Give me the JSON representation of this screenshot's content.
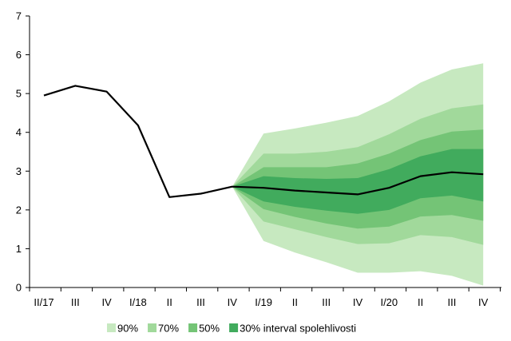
{
  "chart_data": {
    "type": "fan",
    "title": "",
    "xlabel": "",
    "ylabel": "",
    "ylim": [
      0,
      7
    ],
    "y_ticks": [
      0,
      1,
      2,
      3,
      4,
      5,
      6,
      7
    ],
    "grid": false,
    "categories": [
      "II/17",
      "III",
      "IV",
      "I/18",
      "II",
      "III",
      "IV",
      "I/19",
      "II",
      "III",
      "IV",
      "I/20",
      "II",
      "III",
      "IV"
    ],
    "central_line": [
      4.95,
      5.2,
      5.05,
      4.18,
      2.33,
      2.42,
      2.6,
      2.57,
      2.5,
      2.45,
      2.4,
      2.57,
      2.87,
      2.97,
      2.92
    ],
    "fan_start_index": 6,
    "bands": [
      {
        "name": "90%",
        "color": "#c7e9c0",
        "lower": [
          2.6,
          1.2,
          0.9,
          0.65,
          0.38,
          0.38,
          0.42,
          0.3,
          0.05
        ],
        "upper": [
          2.6,
          3.97,
          4.1,
          4.25,
          4.42,
          4.8,
          5.28,
          5.62,
          5.78
        ]
      },
      {
        "name": "70%",
        "color": "#a1d99b",
        "lower": [
          2.6,
          1.7,
          1.5,
          1.3,
          1.12,
          1.14,
          1.35,
          1.3,
          1.1
        ],
        "upper": [
          2.6,
          3.45,
          3.45,
          3.5,
          3.62,
          3.95,
          4.35,
          4.62,
          4.72
        ]
      },
      {
        "name": "50%",
        "color": "#74c476",
        "lower": [
          2.6,
          2.02,
          1.82,
          1.65,
          1.52,
          1.57,
          1.83,
          1.87,
          1.72
        ],
        "upper": [
          2.6,
          3.1,
          3.1,
          3.1,
          3.2,
          3.45,
          3.8,
          4.02,
          4.07
        ]
      },
      {
        "name": "30% interval spolehlivosti",
        "color": "#41ab5d",
        "lower": [
          2.6,
          2.22,
          2.08,
          1.98,
          1.9,
          2.0,
          2.3,
          2.37,
          2.22
        ],
        "upper": [
          2.6,
          2.87,
          2.82,
          2.8,
          2.82,
          3.05,
          3.38,
          3.57,
          3.57
        ]
      }
    ],
    "legend": [
      "90%",
      "70%",
      "50%",
      "30% interval spolehlivosti"
    ],
    "legend_position": "bottom"
  }
}
